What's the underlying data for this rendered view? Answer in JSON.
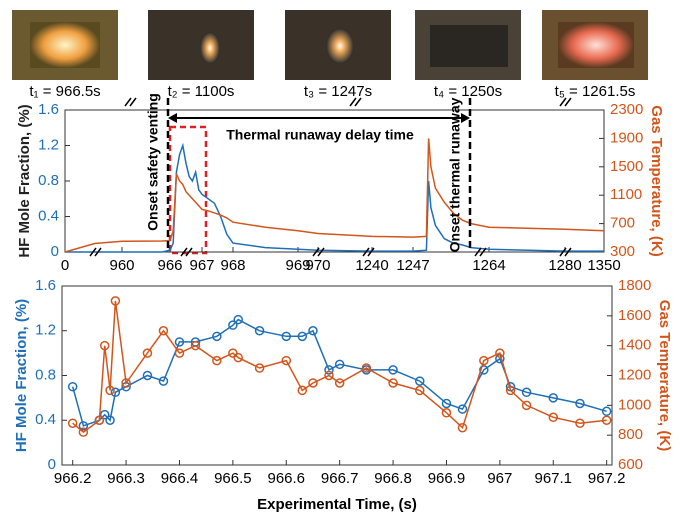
{
  "photos": [
    "t₁ = 966.5s",
    "t₂ = 1100s",
    "t₃ = 1247s",
    "t₄ = 1250s",
    "t₅ = 1261.5s"
  ],
  "chart_data": [
    {
      "type": "line",
      "ylabel": "HF Mole Fraction, (%)",
      "y2label": "Gas Temperature, (K)",
      "annotations": [
        "Onset safety venting",
        "Thermal runaway delay time",
        "Onset thermal runaway"
      ],
      "x": [
        0,
        500,
        960,
        965,
        966.0,
        966.1,
        966.2,
        966.3,
        966.4,
        966.5,
        966.6,
        966.7,
        966.8,
        966.9,
        967.0,
        967.2,
        967.4,
        967.6,
        967.8,
        968.0,
        968.5,
        969,
        970,
        1240,
        1247,
        1250,
        1250.5,
        1251,
        1252,
        1254,
        1256,
        1258,
        1260,
        1264,
        1280,
        1350
      ],
      "series": [
        {
          "color": "#1f6fb8",
          "values": [
            0,
            0,
            0,
            0,
            0.02,
            0.1,
            0.9,
            1.1,
            1.2,
            1.0,
            0.85,
            0.8,
            0.9,
            0.7,
            0.65,
            0.6,
            0.55,
            0.4,
            0.2,
            0.1,
            0.05,
            0.03,
            0.02,
            0.01,
            0.01,
            0.02,
            0.8,
            0.5,
            0.3,
            0.15,
            0.1,
            0.08,
            0.05,
            0.03,
            0.01,
            0.01
          ]
        },
        {
          "color": "#d2561c",
          "axis": "y2",
          "values": [
            300,
            420,
            450,
            455,
            460,
            600,
            1400,
            1300,
            1250,
            1150,
            1100,
            1050,
            1000,
            950,
            900,
            880,
            850,
            820,
            780,
            720,
            650,
            600,
            560,
            520,
            510,
            520,
            1900,
            1500,
            1200,
            1000,
            850,
            750,
            700,
            650,
            620,
            600
          ]
        }
      ],
      "xticks": [
        0,
        960,
        966,
        967,
        968,
        969,
        970,
        1240,
        1247,
        1264,
        1280,
        1350
      ],
      "ylim": [
        0,
        1.6
      ],
      "yticks": [
        0,
        0.4,
        0.8,
        1.2,
        1.6
      ],
      "y2lim": [
        300,
        2300
      ],
      "y2ticks": [
        300,
        700,
        1100,
        1500,
        1900,
        2300
      ]
    },
    {
      "type": "line",
      "markers": true,
      "xlabel": "Experimental Time, (s)",
      "ylabel": "HF Mole Fraction, (%)",
      "y2label": "Gas Temperature, (K)",
      "x": [
        966.2,
        966.22,
        966.25,
        966.26,
        966.27,
        966.28,
        966.3,
        966.34,
        966.37,
        966.4,
        966.43,
        966.47,
        966.5,
        966.51,
        966.55,
        966.6,
        966.63,
        966.65,
        966.68,
        966.7,
        966.75,
        966.8,
        966.85,
        966.9,
        966.93,
        966.97,
        967.0,
        967.02,
        967.05,
        967.1,
        967.15,
        967.2
      ],
      "series": [
        {
          "color": "#1f6fb8",
          "values": [
            0.7,
            0.35,
            0.4,
            0.45,
            0.4,
            0.65,
            0.7,
            0.8,
            0.75,
            1.1,
            1.1,
            1.15,
            1.25,
            1.3,
            1.2,
            1.15,
            1.15,
            1.2,
            0.85,
            0.9,
            0.85,
            0.85,
            0.75,
            0.55,
            0.5,
            0.85,
            0.95,
            0.7,
            0.65,
            0.6,
            0.55,
            0.48
          ]
        },
        {
          "color": "#d2561c",
          "axis": "y2",
          "values": [
            880,
            820,
            900,
            1400,
            1100,
            1700,
            1150,
            1350,
            1500,
            1350,
            1400,
            1300,
            1350,
            1320,
            1250,
            1300,
            1100,
            1150,
            1200,
            1150,
            1250,
            1150,
            1100,
            950,
            850,
            1300,
            1350,
            1100,
            1000,
            920,
            880,
            900
          ]
        }
      ],
      "xlim": [
        966.18,
        967.21
      ],
      "xticks": [
        966.2,
        966.3,
        966.4,
        966.5,
        966.6,
        966.7,
        966.8,
        966.9,
        967,
        967.1,
        967.2
      ],
      "ylim": [
        0,
        1.6
      ],
      "yticks": [
        0,
        0.4,
        0.8,
        1.2,
        1.6
      ],
      "y2lim": [
        600,
        1800
      ],
      "y2ticks": [
        600,
        800,
        1000,
        1200,
        1400,
        1600,
        1800
      ]
    }
  ]
}
